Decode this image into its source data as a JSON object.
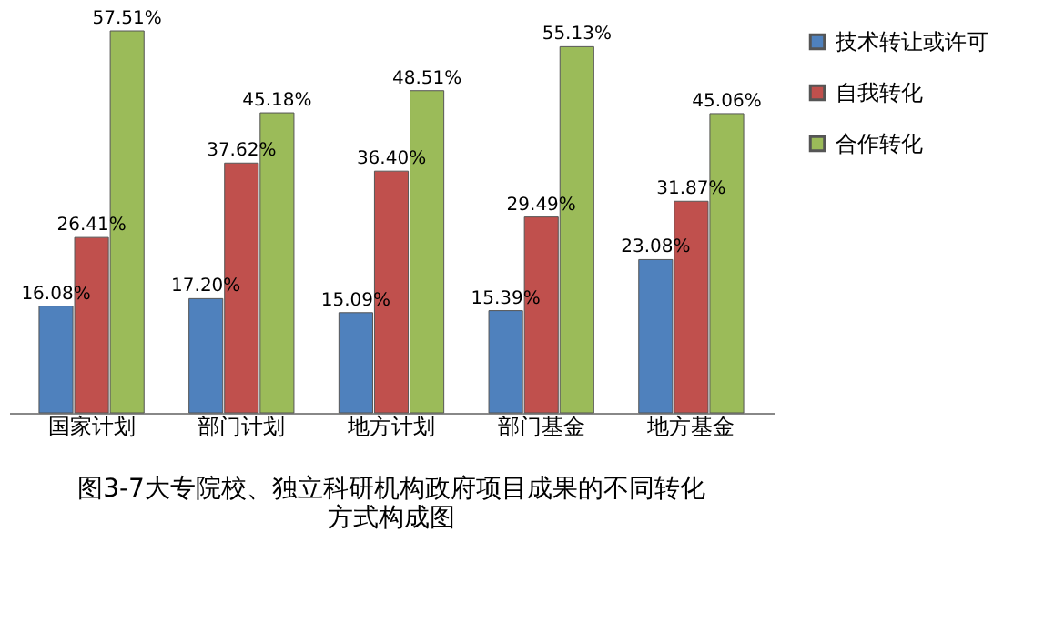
{
  "chart_data": {
    "type": "bar",
    "title": "图3-7大专院校、独立科研机构政府项目成果的不同转化方式构成图",
    "categories": [
      "国家计划",
      "部门计划",
      "地方计划",
      "部门基金",
      "地方基金"
    ],
    "series": [
      {
        "name": "技术转让或许可",
        "color": "#4f81bd",
        "values": [
          16.08,
          17.2,
          15.09,
          15.39,
          23.08
        ],
        "value_labels": [
          "16.08%",
          "17.20%",
          "15.09%",
          "15.39%",
          "23.08%"
        ]
      },
      {
        "name": "自我转化",
        "color": "#c0504d",
        "values": [
          26.41,
          37.62,
          36.4,
          29.49,
          31.87
        ],
        "value_labels": [
          "26.41%",
          "37.62%",
          "36.40%",
          "29.49%",
          "31.87%"
        ]
      },
      {
        "name": "合作转化",
        "color": "#9bbb59",
        "values": [
          57.51,
          45.18,
          48.51,
          55.13,
          45.06
        ],
        "value_labels": [
          "57.51%",
          "45.18%",
          "48.51%",
          "55.13%",
          "45.06%"
        ]
      }
    ],
    "legend": "right",
    "grid": false
  }
}
